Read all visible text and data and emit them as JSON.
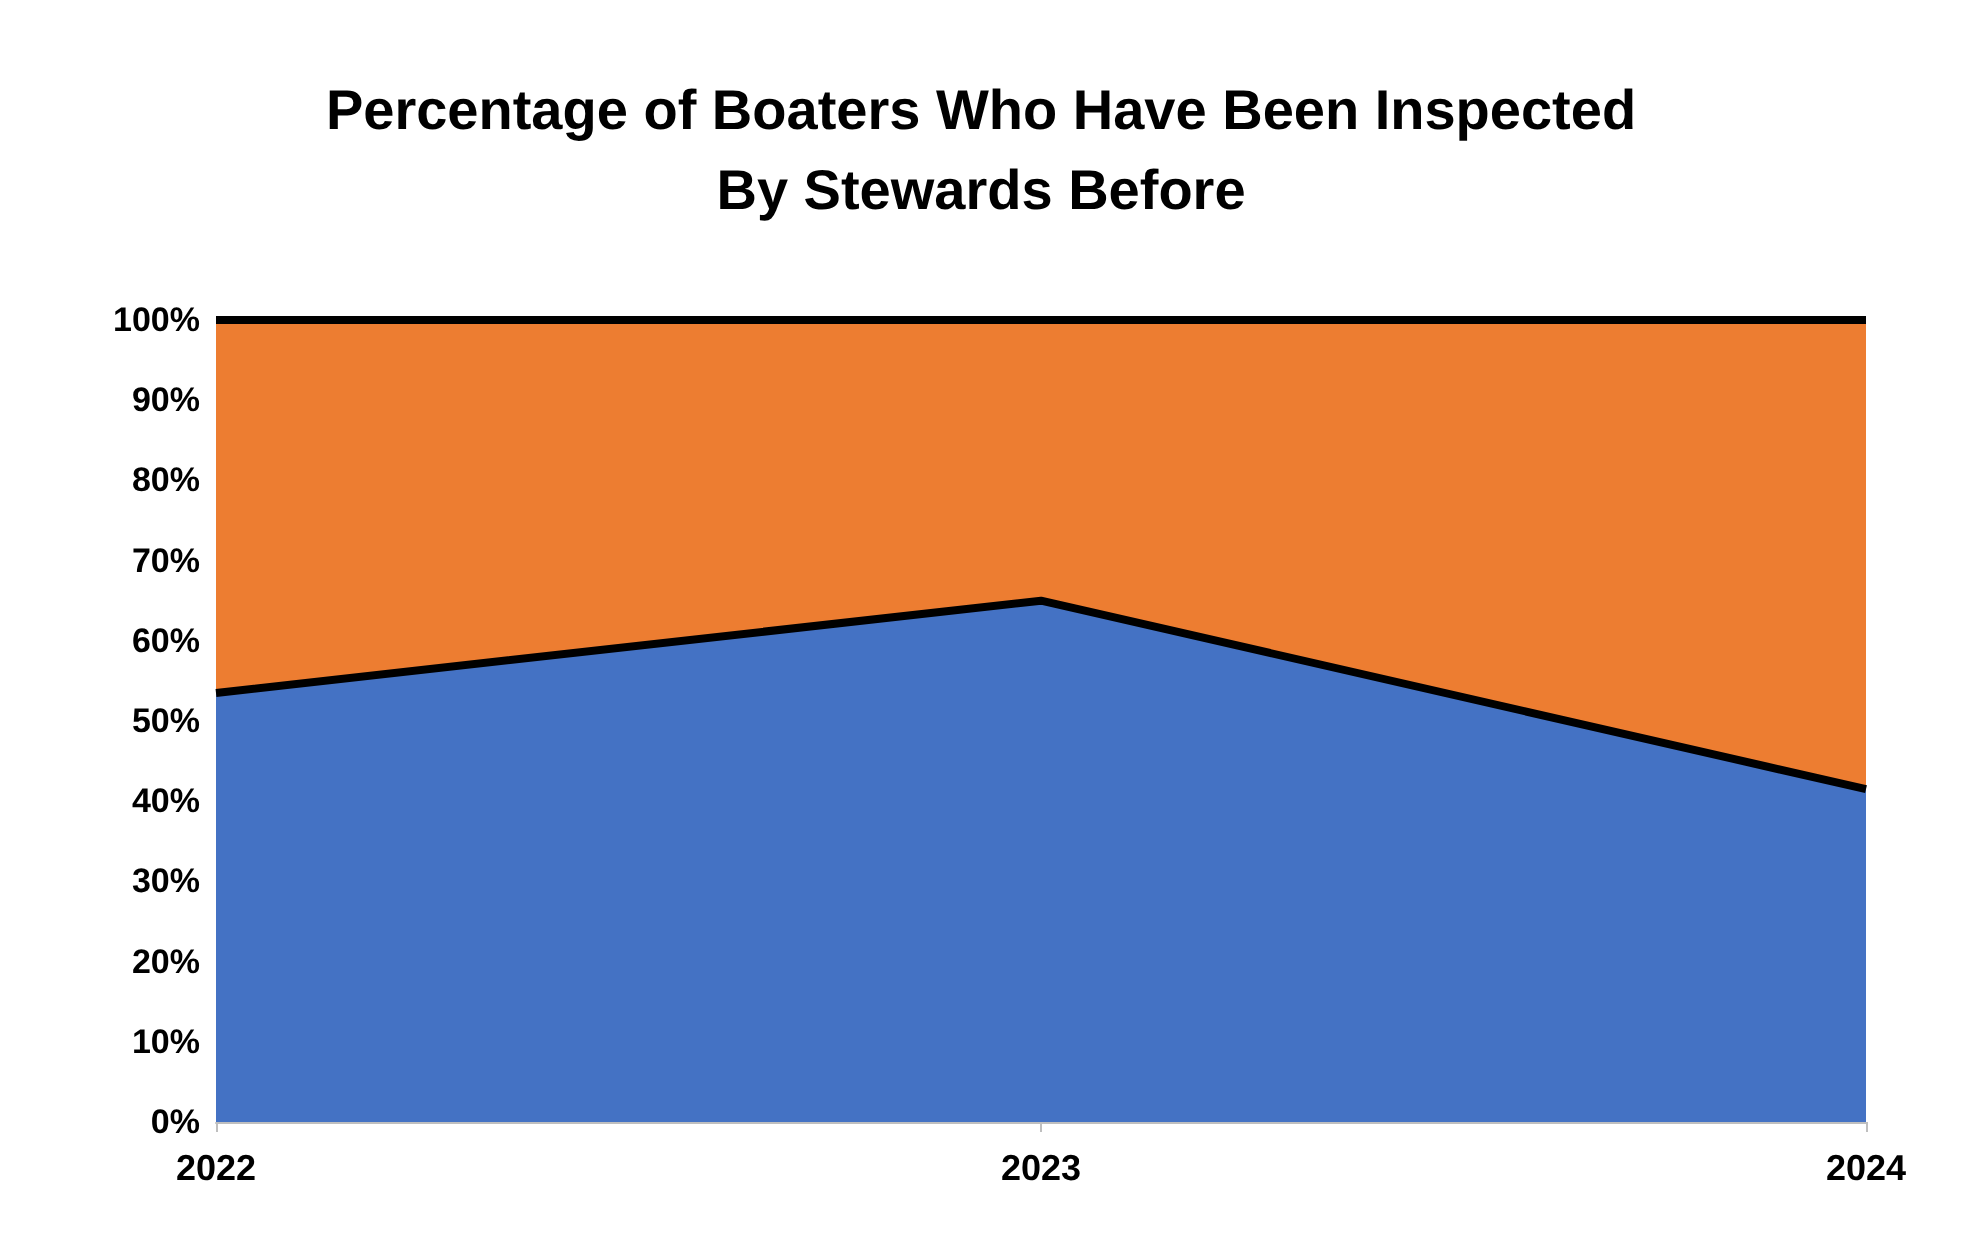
{
  "chart_data": {
    "type": "area",
    "title": "Percentage of Boaters Who Have Been Inspected\nBy Stewards Before",
    "categories": [
      "2022",
      "2023",
      "2024"
    ],
    "stacked": true,
    "series": [
      {
        "color": "#4472c4",
        "values": [
          53.5,
          65,
          41.5
        ]
      },
      {
        "color": "#ed7d31",
        "values": [
          46.5,
          35,
          58.5
        ]
      }
    ],
    "ylim": [
      0,
      100
    ],
    "yticks": [
      {
        "value": 0,
        "label": "0%"
      },
      {
        "value": 10,
        "label": "10%"
      },
      {
        "value": 20,
        "label": "20%"
      },
      {
        "value": 30,
        "label": "30%"
      },
      {
        "value": 40,
        "label": "40%"
      },
      {
        "value": 50,
        "label": "50%"
      },
      {
        "value": 60,
        "label": "60%"
      },
      {
        "value": 70,
        "label": "70%"
      },
      {
        "value": 80,
        "label": "80%"
      },
      {
        "value": 90,
        "label": "90%"
      },
      {
        "value": 100,
        "label": "100%"
      }
    ],
    "grid": false
  }
}
